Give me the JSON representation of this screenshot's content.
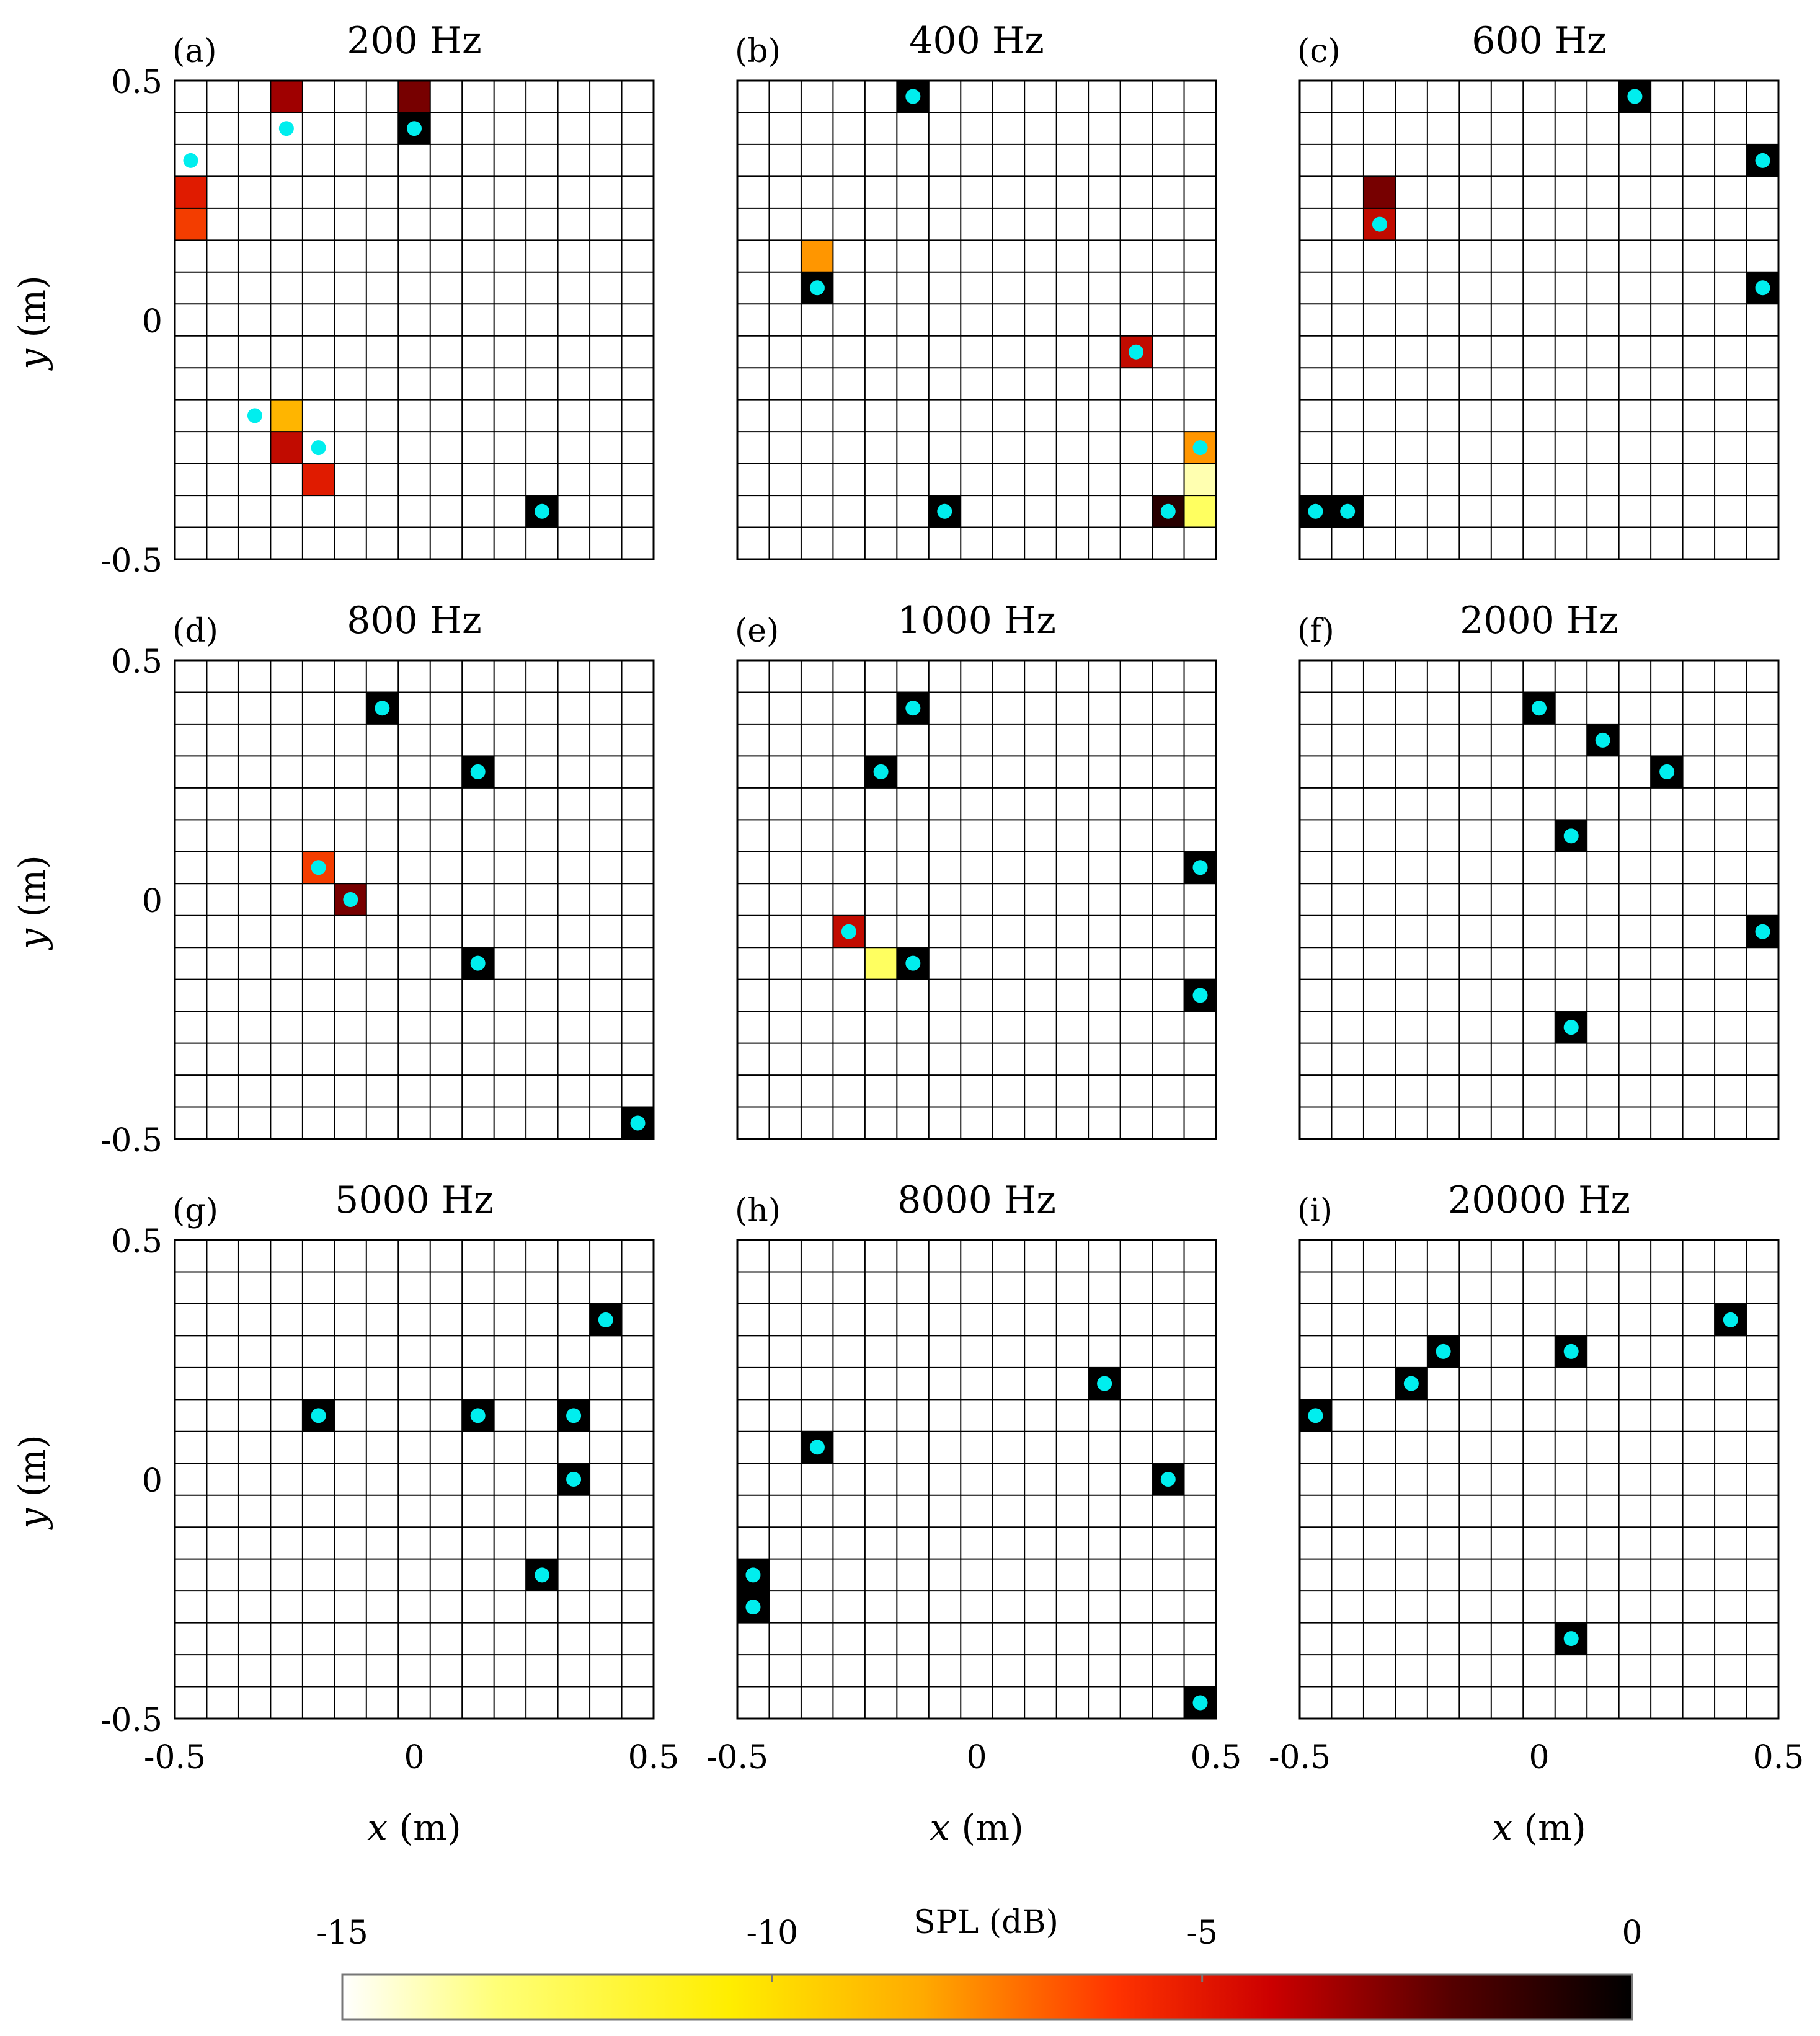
{
  "chart_data": {
    "type": "heatmap",
    "grid": {
      "cols": 15,
      "rows": 15,
      "xlim": [
        -0.5,
        0.5
      ],
      "ylim": [
        -0.5,
        0.5
      ]
    },
    "x_ticks": [
      "-0.5",
      "0",
      "0.5"
    ],
    "y_ticks": [
      "0.5",
      "0",
      "-0.5"
    ],
    "xlabel": {
      "var": "x",
      "unit": "(m)"
    },
    "ylabel": {
      "var": "y",
      "unit": "(m)"
    },
    "panels": [
      {
        "letter": "(a)",
        "title": "200 Hz",
        "cells": [
          {
            "col": 3,
            "row": 14,
            "spl": -4
          },
          {
            "col": 7,
            "row": 14,
            "spl": -3
          },
          {
            "col": 7,
            "row": 13,
            "spl": 0
          },
          {
            "col": 0,
            "row": 11,
            "spl": -6
          },
          {
            "col": 0,
            "row": 10,
            "spl": -7
          },
          {
            "col": 3,
            "row": 4,
            "spl": -10
          },
          {
            "col": 3,
            "row": 3,
            "spl": -5
          },
          {
            "col": 4,
            "row": 2,
            "spl": -6
          },
          {
            "col": 11,
            "row": 1,
            "spl": 0
          }
        ],
        "sources": [
          {
            "x": 0.0,
            "y": 0.4
          },
          {
            "x": -0.267,
            "y": 0.4
          },
          {
            "x": -0.467,
            "y": 0.333
          },
          {
            "x": -0.333,
            "y": -0.2
          },
          {
            "x": -0.2,
            "y": -0.267
          },
          {
            "x": 0.267,
            "y": -0.4
          }
        ]
      },
      {
        "letter": "(b)",
        "title": "400 Hz",
        "cells": [
          {
            "col": 5,
            "row": 14,
            "spl": 0
          },
          {
            "col": 2,
            "row": 9,
            "spl": -9
          },
          {
            "col": 2,
            "row": 8,
            "spl": 0
          },
          {
            "col": 12,
            "row": 6,
            "spl": -5
          },
          {
            "col": 14,
            "row": 3,
            "spl": -9
          },
          {
            "col": 14,
            "row": 2,
            "spl": -14
          },
          {
            "col": 14,
            "row": 1,
            "spl": -13
          },
          {
            "col": 13,
            "row": 1,
            "spl": -1
          },
          {
            "col": 6,
            "row": 1,
            "spl": 0
          }
        ],
        "sources": [
          {
            "x": -0.133,
            "y": 0.467
          },
          {
            "x": -0.333,
            "y": 0.067
          },
          {
            "x": 0.333,
            "y": -0.067
          },
          {
            "x": 0.467,
            "y": -0.267
          },
          {
            "x": 0.4,
            "y": -0.4
          },
          {
            "x": -0.067,
            "y": -0.4
          }
        ]
      },
      {
        "letter": "(c)",
        "title": "600 Hz",
        "cells": [
          {
            "col": 10,
            "row": 14,
            "spl": 0
          },
          {
            "col": 14,
            "row": 12,
            "spl": 0
          },
          {
            "col": 2,
            "row": 11,
            "spl": -3
          },
          {
            "col": 2,
            "row": 10,
            "spl": -5
          },
          {
            "col": 14,
            "row": 8,
            "spl": 0
          },
          {
            "col": 0,
            "row": 1,
            "spl": 0
          },
          {
            "col": 1,
            "row": 1,
            "spl": 0
          }
        ],
        "sources": [
          {
            "x": 0.2,
            "y": 0.467
          },
          {
            "x": 0.467,
            "y": 0.333
          },
          {
            "x": -0.333,
            "y": 0.2
          },
          {
            "x": 0.467,
            "y": 0.067
          },
          {
            "x": -0.467,
            "y": -0.4
          },
          {
            "x": -0.4,
            "y": -0.4
          }
        ]
      },
      {
        "letter": "(d)",
        "title": "800 Hz",
        "cells": [
          {
            "col": 6,
            "row": 13,
            "spl": 0
          },
          {
            "col": 9,
            "row": 11,
            "spl": 0
          },
          {
            "col": 4,
            "row": 8,
            "spl": -7
          },
          {
            "col": 5,
            "row": 7,
            "spl": -3
          },
          {
            "col": 9,
            "row": 5,
            "spl": 0
          },
          {
            "col": 14,
            "row": 0,
            "spl": 0
          }
        ],
        "sources": [
          {
            "x": -0.067,
            "y": 0.4
          },
          {
            "x": 0.133,
            "y": 0.267
          },
          {
            "x": -0.2,
            "y": 0.067
          },
          {
            "x": -0.133,
            "y": 0.0
          },
          {
            "x": 0.133,
            "y": -0.133
          },
          {
            "x": 0.467,
            "y": -0.467
          }
        ]
      },
      {
        "letter": "(e)",
        "title": "1000 Hz",
        "cells": [
          {
            "col": 5,
            "row": 13,
            "spl": 0
          },
          {
            "col": 4,
            "row": 11,
            "spl": 0
          },
          {
            "col": 14,
            "row": 8,
            "spl": 0
          },
          {
            "col": 3,
            "row": 6,
            "spl": -5
          },
          {
            "col": 4,
            "row": 5,
            "spl": -13
          },
          {
            "col": 5,
            "row": 5,
            "spl": 0
          },
          {
            "col": 14,
            "row": 4,
            "spl": 0
          }
        ],
        "sources": [
          {
            "x": -0.133,
            "y": 0.4
          },
          {
            "x": -0.2,
            "y": 0.267
          },
          {
            "x": 0.467,
            "y": 0.067
          },
          {
            "x": -0.267,
            "y": -0.067
          },
          {
            "x": -0.133,
            "y": -0.133
          },
          {
            "x": 0.467,
            "y": -0.2
          }
        ]
      },
      {
        "letter": "(f)",
        "title": "2000 Hz",
        "cells": [
          {
            "col": 7,
            "row": 13,
            "spl": 0
          },
          {
            "col": 9,
            "row": 12,
            "spl": 0
          },
          {
            "col": 11,
            "row": 11,
            "spl": 0
          },
          {
            "col": 8,
            "row": 9,
            "spl": 0
          },
          {
            "col": 14,
            "row": 6,
            "spl": 0
          },
          {
            "col": 8,
            "row": 3,
            "spl": 0
          }
        ],
        "sources": [
          {
            "x": 0.0,
            "y": 0.4
          },
          {
            "x": 0.133,
            "y": 0.333
          },
          {
            "x": 0.267,
            "y": 0.267
          },
          {
            "x": 0.067,
            "y": 0.133
          },
          {
            "x": 0.467,
            "y": -0.067
          },
          {
            "x": 0.067,
            "y": -0.267
          }
        ]
      },
      {
        "letter": "(g)",
        "title": "5000 Hz",
        "cells": [
          {
            "col": 13,
            "row": 12,
            "spl": 0
          },
          {
            "col": 4,
            "row": 9,
            "spl": 0
          },
          {
            "col": 9,
            "row": 9,
            "spl": 0
          },
          {
            "col": 12,
            "row": 9,
            "spl": 0
          },
          {
            "col": 12,
            "row": 7,
            "spl": 0
          },
          {
            "col": 11,
            "row": 4,
            "spl": 0
          }
        ],
        "sources": [
          {
            "x": 0.4,
            "y": 0.333
          },
          {
            "x": -0.2,
            "y": 0.133
          },
          {
            "x": 0.133,
            "y": 0.133
          },
          {
            "x": 0.333,
            "y": 0.133
          },
          {
            "x": 0.333,
            "y": 0.0
          },
          {
            "x": 0.267,
            "y": -0.2
          }
        ]
      },
      {
        "letter": "(h)",
        "title": "8000 Hz",
        "cells": [
          {
            "col": 11,
            "row": 10,
            "spl": 0
          },
          {
            "col": 2,
            "row": 8,
            "spl": 0
          },
          {
            "col": 13,
            "row": 7,
            "spl": 0
          },
          {
            "col": 0,
            "row": 4,
            "spl": 0
          },
          {
            "col": 0,
            "row": 3,
            "spl": 0
          },
          {
            "col": 14,
            "row": 0,
            "spl": 0
          }
        ],
        "sources": [
          {
            "x": 0.267,
            "y": 0.2
          },
          {
            "x": -0.333,
            "y": 0.067
          },
          {
            "x": 0.4,
            "y": 0.0
          },
          {
            "x": -0.467,
            "y": -0.2
          },
          {
            "x": -0.467,
            "y": -0.267
          },
          {
            "x": 0.467,
            "y": -0.467
          }
        ]
      },
      {
        "letter": "(i)",
        "title": "20000 Hz",
        "cells": [
          {
            "col": 13,
            "row": 12,
            "spl": 0
          },
          {
            "col": 4,
            "row": 11,
            "spl": 0
          },
          {
            "col": 8,
            "row": 11,
            "spl": 0
          },
          {
            "col": 3,
            "row": 10,
            "spl": 0
          },
          {
            "col": 0,
            "row": 9,
            "spl": 0
          },
          {
            "col": 8,
            "row": 2,
            "spl": 0
          }
        ],
        "sources": [
          {
            "x": 0.4,
            "y": 0.333
          },
          {
            "x": -0.2,
            "y": 0.267
          },
          {
            "x": 0.067,
            "y": 0.267
          },
          {
            "x": -0.267,
            "y": 0.2
          },
          {
            "x": -0.467,
            "y": 0.133
          },
          {
            "x": 0.067,
            "y": -0.333
          }
        ]
      }
    ],
    "colorbar": {
      "label": "SPL (dB)",
      "range": [
        -15,
        0
      ],
      "tick_values": [
        -15,
        -10,
        -5,
        0
      ],
      "tick_labels": [
        "-15",
        "-10",
        "-5",
        "0"
      ]
    },
    "colors": {
      "source_marker": "#00eeee",
      "grid_line": "#000000",
      "colormap": [
        "#ffffff",
        "#ffff55",
        "#ffcc00",
        "#ff8800",
        "#ee2200",
        "#aa0000",
        "#550000",
        "#000000"
      ]
    }
  }
}
